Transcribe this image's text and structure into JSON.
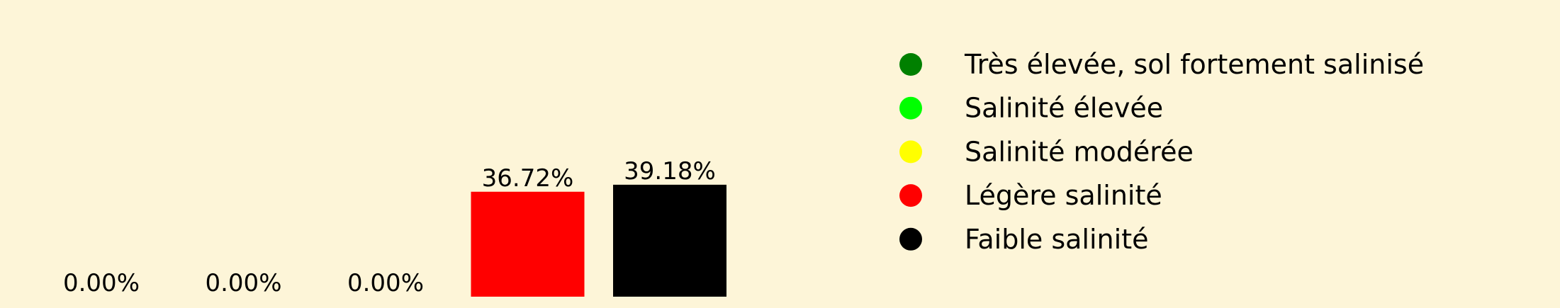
{
  "chart_data": {
    "type": "bar",
    "title": "",
    "xlabel": "",
    "ylabel": "",
    "grid": false,
    "legend_position": "right",
    "categories": [
      "Très élevée, sol fortement salinisé",
      "Salinité élevée",
      "Salinité modérée",
      "Légère salinité",
      "Faible salinité"
    ],
    "values": [
      0.0,
      0.0,
      0.0,
      36.72,
      39.18
    ],
    "value_labels": [
      "0.00%",
      "0.00%",
      "0.00%",
      "36.72%",
      "39.18%"
    ],
    "colors": [
      "#008000",
      "#00ff00",
      "#ffff00",
      "#ff0000",
      "#000000"
    ],
    "legend": [
      {
        "label": "Très élevée, sol fortement salinisé",
        "color": "#008000"
      },
      {
        "label": "Salinité élevée",
        "color": "#00ff00"
      },
      {
        "label": "Salinité modérée",
        "color": "#ffff00"
      },
      {
        "label": "Légère salinité",
        "color": "#ff0000"
      },
      {
        "label": "Faible salinité",
        "color": "#000000"
      }
    ]
  }
}
